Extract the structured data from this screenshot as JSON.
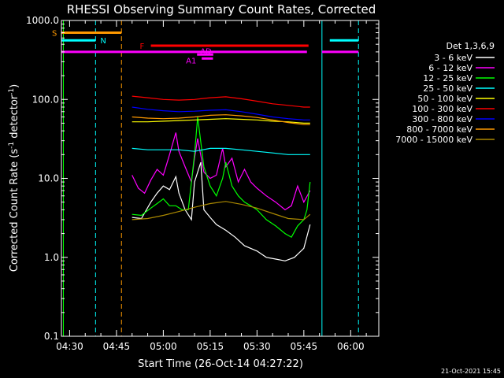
{
  "chart_data": {
    "type": "line",
    "title": "RHESSI Observing Summary Count Rates, Corrected",
    "xlabel": "Start Time (26-Oct-14 04:27:22)",
    "ylabel": "Corrected Count Rate (s⁻¹ detector⁻¹)",
    "ylabel_parts": {
      "main": "Corrected Count Rate (s",
      "sup1": "-1",
      "mid": " detector",
      "sup2": "-1",
      "end": ")"
    },
    "yscale": "log",
    "ylim": [
      0.1,
      1000
    ],
    "xlim_minutes": [
      267.37,
      369.0
    ],
    "ytick_labels": [
      "0.1",
      "1.0",
      "10.0",
      "100.0",
      "1000.0"
    ],
    "ytick_values": [
      0.1,
      1,
      10,
      100,
      1000
    ],
    "xtick_labels": [
      "04:30",
      "04:45",
      "05:00",
      "05:15",
      "05:30",
      "05:45",
      "06:00"
    ],
    "xtick_minutes": [
      270,
      285,
      300,
      315,
      330,
      345,
      360
    ],
    "legend_title": "Det 1,3,6,9",
    "legend_placement": "right",
    "timestamp": "21-Oct-2021 15:45",
    "series": [
      {
        "name": "3 - 6 keV",
        "color": "#ffffff",
        "x": [
          290,
          293,
          296,
          298,
          300,
          302,
          304,
          305,
          307,
          309,
          310,
          312,
          313,
          315,
          317,
          320,
          323,
          326,
          330,
          333,
          336,
          339,
          342,
          345,
          347
        ],
        "y": [
          3.2,
          3.1,
          5.0,
          6.5,
          8.0,
          7.2,
          10.5,
          6.5,
          4.0,
          3.0,
          9.0,
          16.0,
          4.0,
          3.2,
          2.6,
          2.2,
          1.8,
          1.4,
          1.2,
          1.0,
          0.95,
          0.9,
          1.0,
          1.3,
          2.6
        ]
      },
      {
        "name": "6 - 12 keV",
        "color": "#ff00ff",
        "x": [
          290,
          292,
          294,
          296,
          298,
          300,
          302,
          304,
          305,
          307,
          309,
          310,
          311,
          313,
          315,
          317,
          319,
          320,
          322,
          324,
          326,
          328,
          330,
          333,
          336,
          339,
          341,
          343,
          345,
          347
        ],
        "y": [
          11,
          7.5,
          6.5,
          9.5,
          13,
          11,
          20,
          38,
          22,
          14,
          9,
          18,
          32,
          12,
          10,
          11,
          24,
          14,
          18,
          9,
          13,
          9,
          7.5,
          6,
          5,
          4,
          4.5,
          8,
          5,
          7
        ]
      },
      {
        "name": "12 - 25 keV",
        "color": "#00ff00",
        "x": [
          290,
          293,
          296,
          298,
          300,
          302,
          304,
          306,
          308,
          310,
          311,
          313,
          315,
          317,
          319,
          320,
          322,
          324,
          326,
          328,
          330,
          333,
          336,
          339,
          341,
          343,
          345,
          346,
          347
        ],
        "y": [
          3.5,
          3.4,
          4.2,
          4.8,
          5.5,
          4.5,
          4.5,
          4.0,
          4.0,
          20,
          60,
          14,
          8,
          6,
          10,
          16,
          8,
          6,
          5,
          4.5,
          4.0,
          3.0,
          2.5,
          2.0,
          1.8,
          2.5,
          3.0,
          4.0,
          9.0
        ]
      },
      {
        "name": "25 - 50 keV",
        "color": "#00ffff",
        "x": [
          290,
          295,
          300,
          305,
          310,
          315,
          320,
          325,
          330,
          335,
          340,
          345,
          347
        ],
        "y": [
          24,
          23,
          23,
          23,
          22,
          24,
          24,
          23,
          22,
          21,
          20,
          20,
          20
        ]
      },
      {
        "name": "50 - 100 keV",
        "color": "#ffff00",
        "x": [
          290,
          295,
          300,
          305,
          310,
          315,
          320,
          325,
          330,
          335,
          340,
          345,
          347
        ],
        "y": [
          52,
          52,
          53,
          54,
          55,
          56,
          57,
          56,
          55,
          53,
          52,
          50,
          50
        ]
      },
      {
        "name": "100 - 300 keV",
        "color": "#ff0000",
        "x": [
          290,
          295,
          300,
          305,
          310,
          315,
          320,
          325,
          330,
          335,
          340,
          345,
          347
        ],
        "y": [
          110,
          105,
          100,
          98,
          100,
          105,
          108,
          102,
          95,
          88,
          84,
          80,
          80
        ]
      },
      {
        "name": "300 - 800 keV",
        "color": "#0000ff",
        "x": [
          290,
          295,
          300,
          305,
          310,
          315,
          320,
          325,
          330,
          335,
          340,
          345,
          347
        ],
        "y": [
          80,
          75,
          72,
          70,
          71,
          73,
          74,
          70,
          65,
          60,
          57,
          55,
          55
        ]
      },
      {
        "name": "800 - 7000 keV",
        "color": "#ff9900",
        "x": [
          290,
          295,
          300,
          305,
          310,
          315,
          320,
          325,
          330,
          335,
          340,
          345,
          347
        ],
        "y": [
          60,
          58,
          57,
          58,
          60,
          63,
          64,
          62,
          59,
          55,
          51,
          48,
          48
        ]
      },
      {
        "name": "7000 - 15000 keV",
        "color": "#aa8800",
        "x": [
          290,
          295,
          300,
          305,
          310,
          315,
          320,
          325,
          330,
          335,
          340,
          345,
          347
        ],
        "y": [
          3.0,
          3.1,
          3.4,
          3.8,
          4.3,
          4.8,
          5.1,
          4.7,
          4.2,
          3.6,
          3.1,
          3.0,
          3.5
        ]
      }
    ],
    "flag_bars": [
      {
        "label": "S",
        "color": "#ff9900",
        "segments": [
          [
            267.4,
            286.6
          ]
        ],
        "level": 700
      },
      {
        "label": "N",
        "color": "#00ffff",
        "segments": [
          [
            267.4,
            278.3
          ],
          [
            353.3,
            362.5
          ]
        ],
        "level": 560
      },
      {
        "label": "F",
        "color": "#ff0000",
        "segments": [
          [
            296.0,
            346.5
          ]
        ],
        "level": 480
      },
      {
        "label": "AD",
        "color": "#ff00ff",
        "segments": [
          [
            310.8,
            316.0
          ]
        ],
        "level": 370
      },
      {
        "label": "",
        "color": "#ff00ff",
        "segments": [
          [
            267.4,
            346.0
          ],
          [
            350.8,
            362.5
          ]
        ],
        "level": 400
      },
      {
        "label": "A1",
        "color": "#ff00ff",
        "segments": [
          [
            312.3,
            315.9
          ]
        ],
        "level": 330
      }
    ],
    "vertical_markers": [
      {
        "x": 278.3,
        "color": "#00ffff",
        "style": "dashed"
      },
      {
        "x": 286.6,
        "color": "#ff9900",
        "style": "dashed"
      },
      {
        "x": 350.8,
        "color": "#00ffff",
        "style": "solid"
      },
      {
        "x": 362.5,
        "color": "#00ffff",
        "style": "dashed"
      },
      {
        "x": 268.0,
        "color": "#00ff00",
        "style": "solid"
      }
    ]
  }
}
